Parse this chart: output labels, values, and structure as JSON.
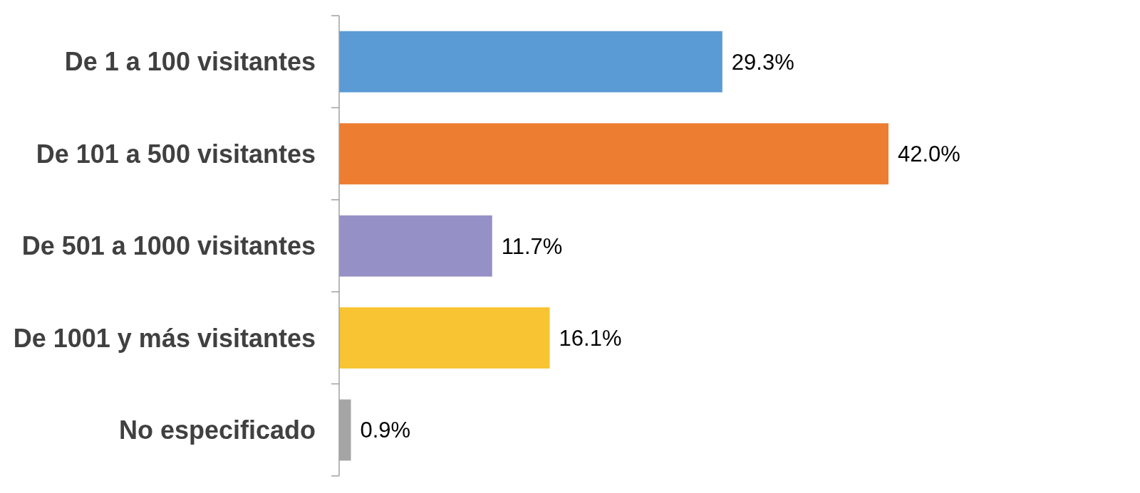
{
  "chart_data": {
    "type": "bar",
    "orientation": "horizontal",
    "categories": [
      "De 1 a 100 visitantes",
      "De 101 a 500 visitantes",
      "De 501 a 1000 visitantes",
      "De 1001 y más visitantes",
      "No especificado"
    ],
    "values": [
      29.3,
      42.0,
      11.7,
      16.1,
      0.9
    ],
    "colors": [
      "#5b9bd5",
      "#ed7d31",
      "#9591c6",
      "#f9c433",
      "#a5a5a5"
    ],
    "value_labels": [
      "29.3%",
      "42.0%",
      "11.7%",
      "16.1%",
      "0.9%"
    ],
    "tick_labels": "y"
  }
}
